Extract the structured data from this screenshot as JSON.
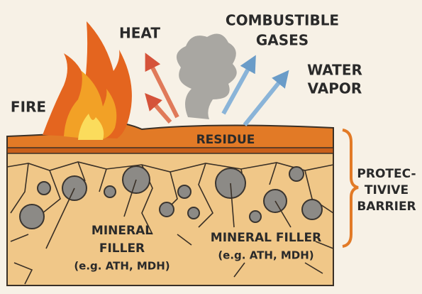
{
  "labels": {
    "heat": "HEAT",
    "combustible_gases": [
      "COMBUSTIBLE",
      "GASES"
    ],
    "water_vapor": [
      "WATER",
      "VAPOR"
    ],
    "fire": "FIRE",
    "residue": "RESIDUE",
    "protective_barrier": [
      "PROTEC-",
      "TIVIVE",
      "BARRIER"
    ],
    "mineral_filler_left": [
      "MINERAL",
      "FILLER",
      "(e.g. ATH, MDH)"
    ],
    "mineral_filler_right": [
      "MINERAL FILLER",
      "(e.g. ATH, MDH)"
    ]
  }
}
